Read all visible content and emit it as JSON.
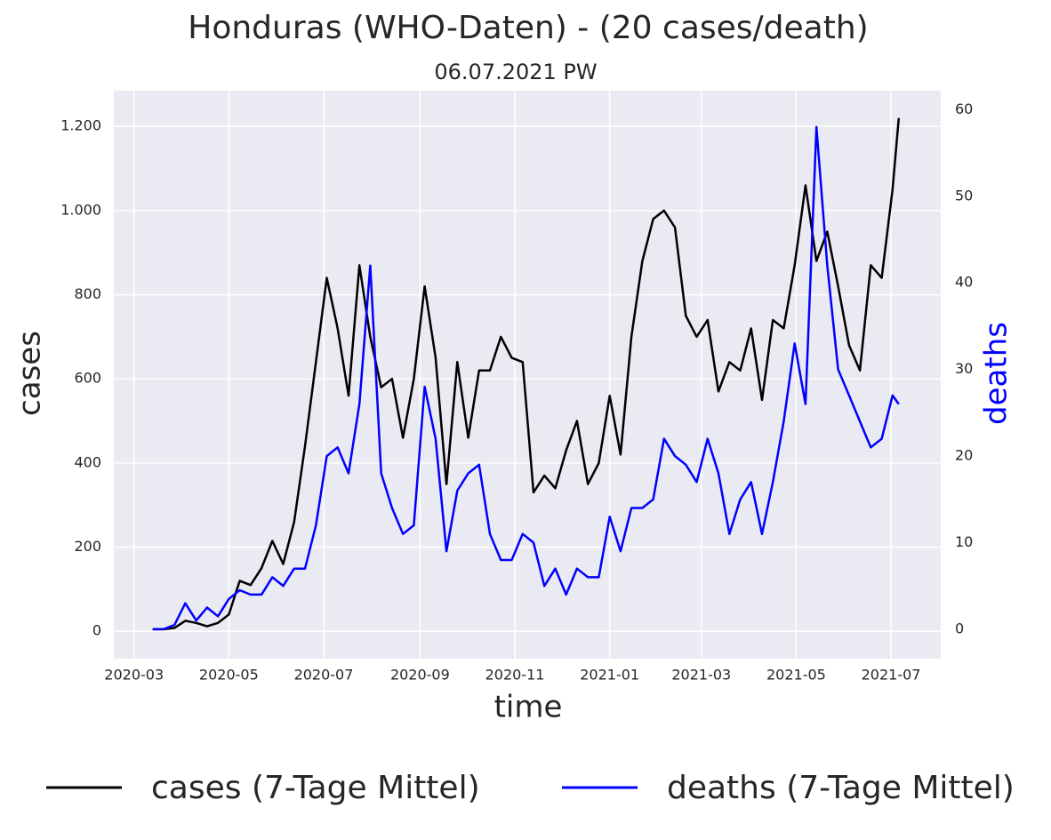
{
  "chart_data": {
    "type": "line",
    "title": "Honduras (WHO-Daten) - (20 cases/death)",
    "subtitle": "06.07.2021 PW",
    "x_label": "time",
    "y_label": "cases",
    "y2_label": "deaths",
    "y2_label_color": "#0000ff",
    "x": [
      "2020-03-13",
      "2020-03-20",
      "2020-03-27",
      "2020-04-03",
      "2020-04-10",
      "2020-04-17",
      "2020-04-24",
      "2020-05-01",
      "2020-05-08",
      "2020-05-15",
      "2020-05-22",
      "2020-05-29",
      "2020-06-05",
      "2020-06-12",
      "2020-06-19",
      "2020-06-26",
      "2020-07-03",
      "2020-07-10",
      "2020-07-17",
      "2020-07-24",
      "2020-07-31",
      "2020-08-07",
      "2020-08-14",
      "2020-08-21",
      "2020-08-28",
      "2020-09-04",
      "2020-09-11",
      "2020-09-18",
      "2020-09-25",
      "2020-10-02",
      "2020-10-09",
      "2020-10-16",
      "2020-10-23",
      "2020-10-30",
      "2020-11-06",
      "2020-11-13",
      "2020-11-20",
      "2020-11-27",
      "2020-12-04",
      "2020-12-11",
      "2020-12-18",
      "2020-12-25",
      "2021-01-01",
      "2021-01-08",
      "2021-01-15",
      "2021-01-22",
      "2021-01-29",
      "2021-02-05",
      "2021-02-12",
      "2021-02-19",
      "2021-02-26",
      "2021-03-05",
      "2021-03-12",
      "2021-03-19",
      "2021-03-26",
      "2021-04-02",
      "2021-04-09",
      "2021-04-16",
      "2021-04-23",
      "2021-04-30",
      "2021-05-07",
      "2021-05-14",
      "2021-05-21",
      "2021-05-28",
      "2021-06-04",
      "2021-06-11",
      "2021-06-18",
      "2021-06-25",
      "2021-07-02",
      "2021-07-06"
    ],
    "series": [
      {
        "name": "cases (7-Tage Mittel)",
        "color": "#000000",
        "axis": "y",
        "values": [
          5,
          5,
          8,
          25,
          20,
          12,
          20,
          40,
          120,
          110,
          150,
          215,
          160,
          260,
          440,
          640,
          840,
          720,
          560,
          870,
          700,
          580,
          600,
          460,
          600,
          820,
          650,
          350,
          640,
          460,
          620,
          620,
          700,
          650,
          640,
          330,
          370,
          340,
          430,
          500,
          350,
          400,
          560,
          420,
          700,
          880,
          980,
          1000,
          960,
          750,
          700,
          740,
          570,
          640,
          620,
          720,
          550,
          740,
          720,
          870,
          1060,
          880,
          950,
          820,
          680,
          620,
          870,
          840,
          1050,
          1220
        ]
      },
      {
        "name": "deaths (7-Tage Mittel)",
        "color": "#0000ff",
        "axis": "y2",
        "values": [
          0,
          0,
          0.5,
          3,
          1,
          2.5,
          1.5,
          3.5,
          4.5,
          4,
          4,
          6,
          5,
          7,
          7,
          12,
          20,
          21,
          18,
          26,
          42,
          18,
          14,
          11,
          12,
          28,
          22,
          9,
          16,
          18,
          19,
          11,
          8,
          8,
          11,
          10,
          5,
          7,
          4,
          7,
          6,
          6,
          13,
          9,
          14,
          14,
          15,
          22,
          20,
          19,
          17,
          22,
          18,
          11,
          15,
          17,
          11,
          17,
          24,
          33,
          26,
          58,
          42,
          30,
          27,
          24,
          21,
          22,
          27,
          26
        ]
      }
    ],
    "xlim": [
      "2020-02-17",
      "2021-08-02"
    ],
    "xticks": [
      {
        "value": "2020-03-01",
        "label": "2020-03"
      },
      {
        "value": "2020-05-01",
        "label": "2020-05"
      },
      {
        "value": "2020-07-01",
        "label": "2020-07"
      },
      {
        "value": "2020-09-01",
        "label": "2020-09"
      },
      {
        "value": "2020-11-01",
        "label": "2020-11"
      },
      {
        "value": "2021-01-01",
        "label": "2021-01"
      },
      {
        "value": "2021-03-01",
        "label": "2021-03"
      },
      {
        "value": "2021-05-01",
        "label": "2021-05"
      },
      {
        "value": "2021-07-01",
        "label": "2021-07"
      }
    ],
    "ylim": [
      -65,
      1285
    ],
    "yticks": [
      0,
      200,
      400,
      600,
      800,
      {
        "value": 1000,
        "label": "1.000"
      },
      {
        "value": 1200,
        "label": "1.200"
      }
    ],
    "y2lim": [
      -3.4,
      62.2
    ],
    "y2ticks": [
      0,
      10,
      20,
      30,
      40,
      50,
      60
    ],
    "grid": true,
    "legend": "bottom"
  }
}
